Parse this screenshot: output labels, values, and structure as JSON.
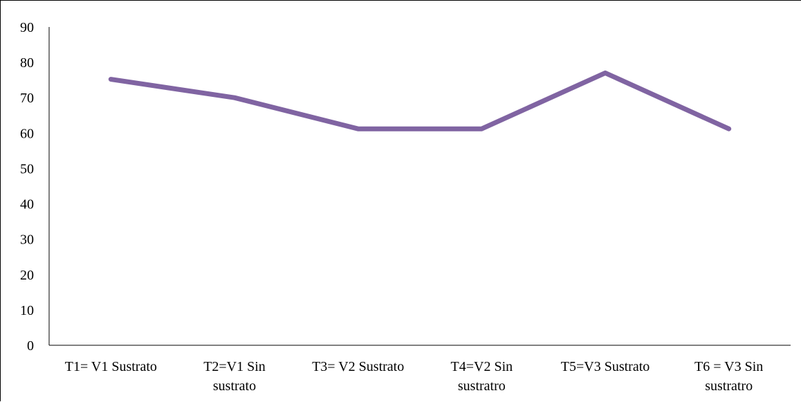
{
  "chart_data": {
    "type": "line",
    "title": "",
    "xlabel": "",
    "ylabel": "",
    "categories": [
      [
        "T1= V1 Sustrato"
      ],
      [
        "T2=V1 Sin",
        "sustrato"
      ],
      [
        "T3= V2 Sustrato"
      ],
      [
        "T4=V2 Sin",
        "sustratro"
      ],
      [
        "T5=V3 Sustrato"
      ],
      [
        "T6 = V3 Sin",
        "sustratro"
      ]
    ],
    "series": [
      {
        "values": [
          75.2,
          70.0,
          61.2,
          61.2,
          77.0,
          61.2
        ],
        "color": "#8064A2"
      }
    ],
    "ylim": [
      0,
      90
    ],
    "yticks": [
      0,
      10,
      20,
      30,
      40,
      50,
      60,
      70,
      80,
      90
    ],
    "grid": false,
    "legend": "none"
  }
}
